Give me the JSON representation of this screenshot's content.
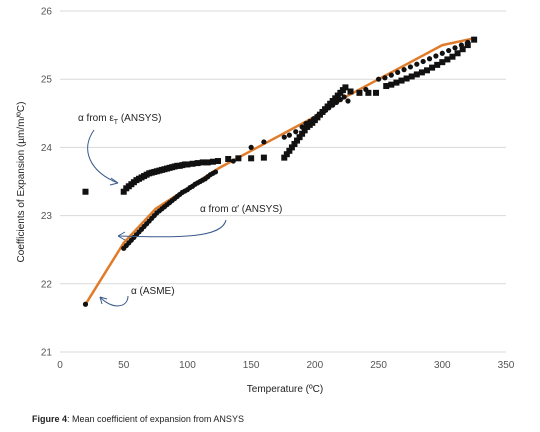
{
  "chart_data": {
    "type": "scatter",
    "xlabel": "Temperature (ºC)",
    "ylabel": "Coefficients of Expansion (µm/m/ºC)",
    "xlim": [
      0,
      350
    ],
    "ylim": [
      21,
      26
    ],
    "x_ticks": [
      0,
      50,
      100,
      150,
      200,
      250,
      300,
      350
    ],
    "y_ticks": [
      21,
      22,
      23,
      24,
      25,
      26
    ],
    "grid": "horizontal",
    "colors": {
      "asme_line": "#e07b2a",
      "markers": "#111111",
      "grid": "#d9d9d9",
      "annotation_arrow": "#3a5a8c"
    },
    "series": [
      {
        "key": "asme",
        "style": "line",
        "points": [
          [
            20,
            21.7
          ],
          [
            50,
            22.6
          ],
          [
            75,
            23.1
          ],
          [
            100,
            23.4
          ],
          [
            125,
            23.7
          ],
          [
            150,
            23.95
          ],
          [
            175,
            24.2
          ],
          [
            200,
            24.45
          ],
          [
            225,
            24.75
          ],
          [
            250,
            25.0
          ],
          [
            275,
            25.25
          ],
          [
            300,
            25.5
          ],
          [
            325,
            25.6
          ]
        ]
      },
      {
        "key": "alpha_prime",
        "style": "circle",
        "points": [
          [
            20,
            21.7
          ],
          [
            50,
            22.52
          ],
          [
            52,
            22.56
          ],
          [
            54,
            22.6
          ],
          [
            56,
            22.64
          ],
          [
            58,
            22.68
          ],
          [
            60,
            22.72
          ],
          [
            62,
            22.76
          ],
          [
            64,
            22.8
          ],
          [
            66,
            22.84
          ],
          [
            68,
            22.88
          ],
          [
            70,
            22.92
          ],
          [
            72,
            22.96
          ],
          [
            74,
            23.0
          ],
          [
            76,
            23.04
          ],
          [
            78,
            23.07
          ],
          [
            80,
            23.1
          ],
          [
            82,
            23.13
          ],
          [
            84,
            23.16
          ],
          [
            86,
            23.19
          ],
          [
            88,
            23.22
          ],
          [
            90,
            23.25
          ],
          [
            92,
            23.28
          ],
          [
            94,
            23.31
          ],
          [
            96,
            23.34
          ],
          [
            98,
            23.36
          ],
          [
            100,
            23.38
          ],
          [
            102,
            23.41
          ],
          [
            104,
            23.43
          ],
          [
            106,
            23.46
          ],
          [
            108,
            23.48
          ],
          [
            110,
            23.5
          ],
          [
            112,
            23.52
          ],
          [
            114,
            23.54
          ],
          [
            116,
            23.57
          ],
          [
            118,
            23.6
          ],
          [
            120,
            23.62
          ],
          [
            122,
            23.64
          ],
          [
            136,
            23.8
          ],
          [
            150,
            24.0
          ],
          [
            160,
            24.08
          ],
          [
            176,
            24.15
          ],
          [
            180,
            24.18
          ],
          [
            185,
            24.23
          ],
          [
            190,
            24.3
          ],
          [
            193,
            24.35
          ],
          [
            196,
            24.38
          ],
          [
            199,
            24.42
          ],
          [
            202,
            24.46
          ],
          [
            205,
            24.5
          ],
          [
            208,
            24.54
          ],
          [
            211,
            24.58
          ],
          [
            214,
            24.62
          ],
          [
            217,
            24.66
          ],
          [
            220,
            24.7
          ],
          [
            223,
            24.74
          ],
          [
            226,
            24.68
          ],
          [
            240,
            24.85
          ],
          [
            250,
            25.0
          ],
          [
            255,
            25.02
          ],
          [
            260,
            25.06
          ],
          [
            265,
            25.1
          ],
          [
            270,
            25.14
          ],
          [
            275,
            25.18
          ],
          [
            280,
            25.22
          ],
          [
            285,
            25.26
          ],
          [
            290,
            25.3
          ],
          [
            295,
            25.34
          ],
          [
            300,
            25.38
          ],
          [
            305,
            25.42
          ],
          [
            310,
            25.46
          ],
          [
            315,
            25.5
          ],
          [
            320,
            25.54
          ],
          [
            325,
            25.58
          ]
        ]
      },
      {
        "key": "alpha_eps",
        "style": "square",
        "points": [
          [
            20,
            23.35
          ],
          [
            50,
            23.35
          ],
          [
            52,
            23.4
          ],
          [
            54,
            23.43
          ],
          [
            56,
            23.46
          ],
          [
            58,
            23.49
          ],
          [
            60,
            23.52
          ],
          [
            62,
            23.54
          ],
          [
            64,
            23.56
          ],
          [
            66,
            23.58
          ],
          [
            68,
            23.6
          ],
          [
            70,
            23.62
          ],
          [
            72,
            23.63
          ],
          [
            74,
            23.64
          ],
          [
            76,
            23.65
          ],
          [
            78,
            23.66
          ],
          [
            80,
            23.67
          ],
          [
            82,
            23.68
          ],
          [
            84,
            23.69
          ],
          [
            86,
            23.7
          ],
          [
            88,
            23.71
          ],
          [
            90,
            23.72
          ],
          [
            92,
            23.73
          ],
          [
            94,
            23.73
          ],
          [
            96,
            23.74
          ],
          [
            98,
            23.75
          ],
          [
            100,
            23.75
          ],
          [
            104,
            23.76
          ],
          [
            108,
            23.77
          ],
          [
            112,
            23.78
          ],
          [
            116,
            23.78
          ],
          [
            120,
            23.79
          ],
          [
            124,
            23.8
          ],
          [
            132,
            23.83
          ],
          [
            140,
            23.84
          ],
          [
            150,
            23.84
          ],
          [
            160,
            23.85
          ],
          [
            176,
            23.85
          ],
          [
            178,
            23.9
          ],
          [
            180,
            23.95
          ],
          [
            182,
            24.0
          ],
          [
            184,
            24.05
          ],
          [
            186,
            24.1
          ],
          [
            188,
            24.15
          ],
          [
            190,
            24.2
          ],
          [
            192,
            24.25
          ],
          [
            194,
            24.3
          ],
          [
            196,
            24.33
          ],
          [
            198,
            24.36
          ],
          [
            200,
            24.4
          ],
          [
            202,
            24.44
          ],
          [
            204,
            24.48
          ],
          [
            206,
            24.52
          ],
          [
            208,
            24.56
          ],
          [
            210,
            24.6
          ],
          [
            212,
            24.64
          ],
          [
            214,
            24.68
          ],
          [
            216,
            24.72
          ],
          [
            218,
            24.76
          ],
          [
            220,
            24.8
          ],
          [
            222,
            24.84
          ],
          [
            224,
            24.88
          ],
          [
            228,
            24.82
          ],
          [
            235,
            24.8
          ],
          [
            242,
            24.8
          ],
          [
            248,
            24.8
          ],
          [
            256,
            24.9
          ],
          [
            260,
            24.92
          ],
          [
            264,
            24.95
          ],
          [
            268,
            24.98
          ],
          [
            272,
            25.01
          ],
          [
            276,
            25.04
          ],
          [
            280,
            25.07
          ],
          [
            284,
            25.1
          ],
          [
            288,
            25.13
          ],
          [
            292,
            25.17
          ],
          [
            296,
            25.21
          ],
          [
            300,
            25.25
          ],
          [
            304,
            25.29
          ],
          [
            308,
            25.33
          ],
          [
            312,
            25.38
          ],
          [
            316,
            25.44
          ],
          [
            320,
            25.5
          ],
          [
            325,
            25.58
          ]
        ]
      }
    ],
    "annotations": [
      {
        "key": "eps",
        "prefix": "α from ε",
        "subscript": "T",
        "suffix": " (ANSYS)"
      },
      {
        "key": "prime",
        "text": "α from α′ (ANSYS)"
      },
      {
        "key": "asme",
        "text": "α (ASME)"
      }
    ]
  },
  "caption": {
    "label": "Figure 4",
    "text": ": Mean coefficient of expansion from ANSYS"
  }
}
